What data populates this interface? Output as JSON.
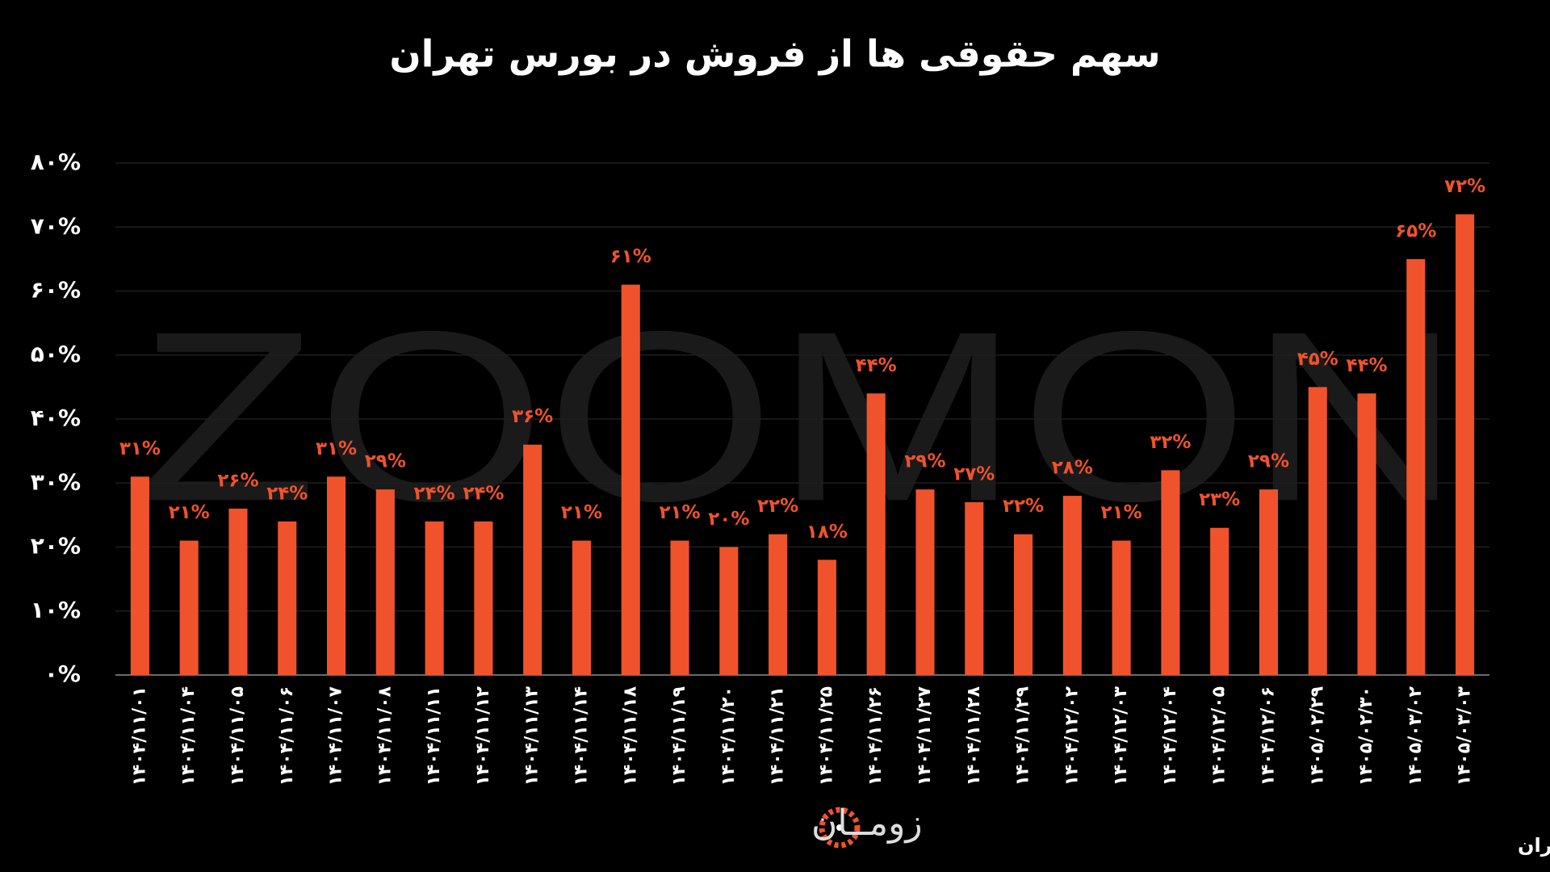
{
  "chart_data": {
    "type": "bar",
    "title": "سهم حقوقی ها از فروش در بورس تهران",
    "watermark": "ZOOMON",
    "logo": "زومــان",
    "source": "منبع: بورس تهران",
    "categories": [
      "۱۴۰۴/۱۱/۰۱",
      "۱۴۰۴/۱۱/۰۴",
      "۱۴۰۴/۱۱/۰۵",
      "۱۴۰۴/۱۱/۰۶",
      "۱۴۰۴/۱۱/۰۷",
      "۱۴۰۴/۱۱/۰۸",
      "۱۴۰۴/۱۱/۱۱",
      "۱۴۰۴/۱۱/۱۲",
      "۱۴۰۴/۱۱/۱۳",
      "۱۴۰۴/۱۱/۱۴",
      "۱۴۰۴/۱۱/۱۸",
      "۱۴۰۴/۱۱/۱۹",
      "۱۴۰۴/۱۱/۲۰",
      "۱۴۰۴/۱۱/۲۱",
      "۱۴۰۴/۱۱/۲۵",
      "۱۴۰۴/۱۱/۲۶",
      "۱۴۰۴/۱۱/۲۷",
      "۱۴۰۴/۱۱/۲۸",
      "۱۴۰۴/۱۱/۲۹",
      "۱۴۰۴/۱۲/۰۲",
      "۱۴۰۴/۱۲/۰۳",
      "۱۴۰۴/۱۲/۰۴",
      "۱۴۰۴/۱۲/۰۵",
      "۱۴۰۴/۱۲/۰۶",
      "۱۴۰۵/۰۲/۲۹",
      "۱۴۰۵/۰۲/۳۰",
      "۱۴۰۵/۰۳/۰۲",
      "۱۴۰۵/۰۳/۰۳"
    ],
    "values": [
      31,
      21,
      26,
      24,
      31,
      29,
      24,
      24,
      36,
      21,
      61,
      21,
      20,
      22,
      18,
      44,
      29,
      27,
      22,
      28,
      21,
      32,
      23,
      29,
      45,
      44,
      65,
      72
    ],
    "value_labels": [
      "۳۱%",
      "۲۱%",
      "۲۶%",
      "۲۴%",
      "۳۱%",
      "۲۹%",
      "۲۴%",
      "۲۴%",
      "۳۶%",
      "۲۱%",
      "۶۱%",
      "۲۱%",
      "۲۰%",
      "۲۲%",
      "۱۸%",
      "۴۴%",
      "۲۹%",
      "۲۷%",
      "۲۲%",
      "۲۸%",
      "۲۱%",
      "۳۲%",
      "۲۳%",
      "۲۹%",
      "۴۵%",
      "۴۴%",
      "۶۵%",
      "۷۲%"
    ],
    "color": "#f0532b",
    "ylim": [
      0,
      80
    ],
    "yticks": [
      {
        "value": 0,
        "label": "۰%"
      },
      {
        "value": 10,
        "label": "۱۰%"
      },
      {
        "value": 20,
        "label": "۲۰%"
      },
      {
        "value": 30,
        "label": "۳۰%"
      },
      {
        "value": 40,
        "label": "۴۰%"
      },
      {
        "value": 50,
        "label": "۵۰%"
      },
      {
        "value": 60,
        "label": "۶۰%"
      },
      {
        "value": 70,
        "label": "۷۰%"
      },
      {
        "value": 80,
        "label": "۸۰%"
      }
    ],
    "grid": true
  }
}
